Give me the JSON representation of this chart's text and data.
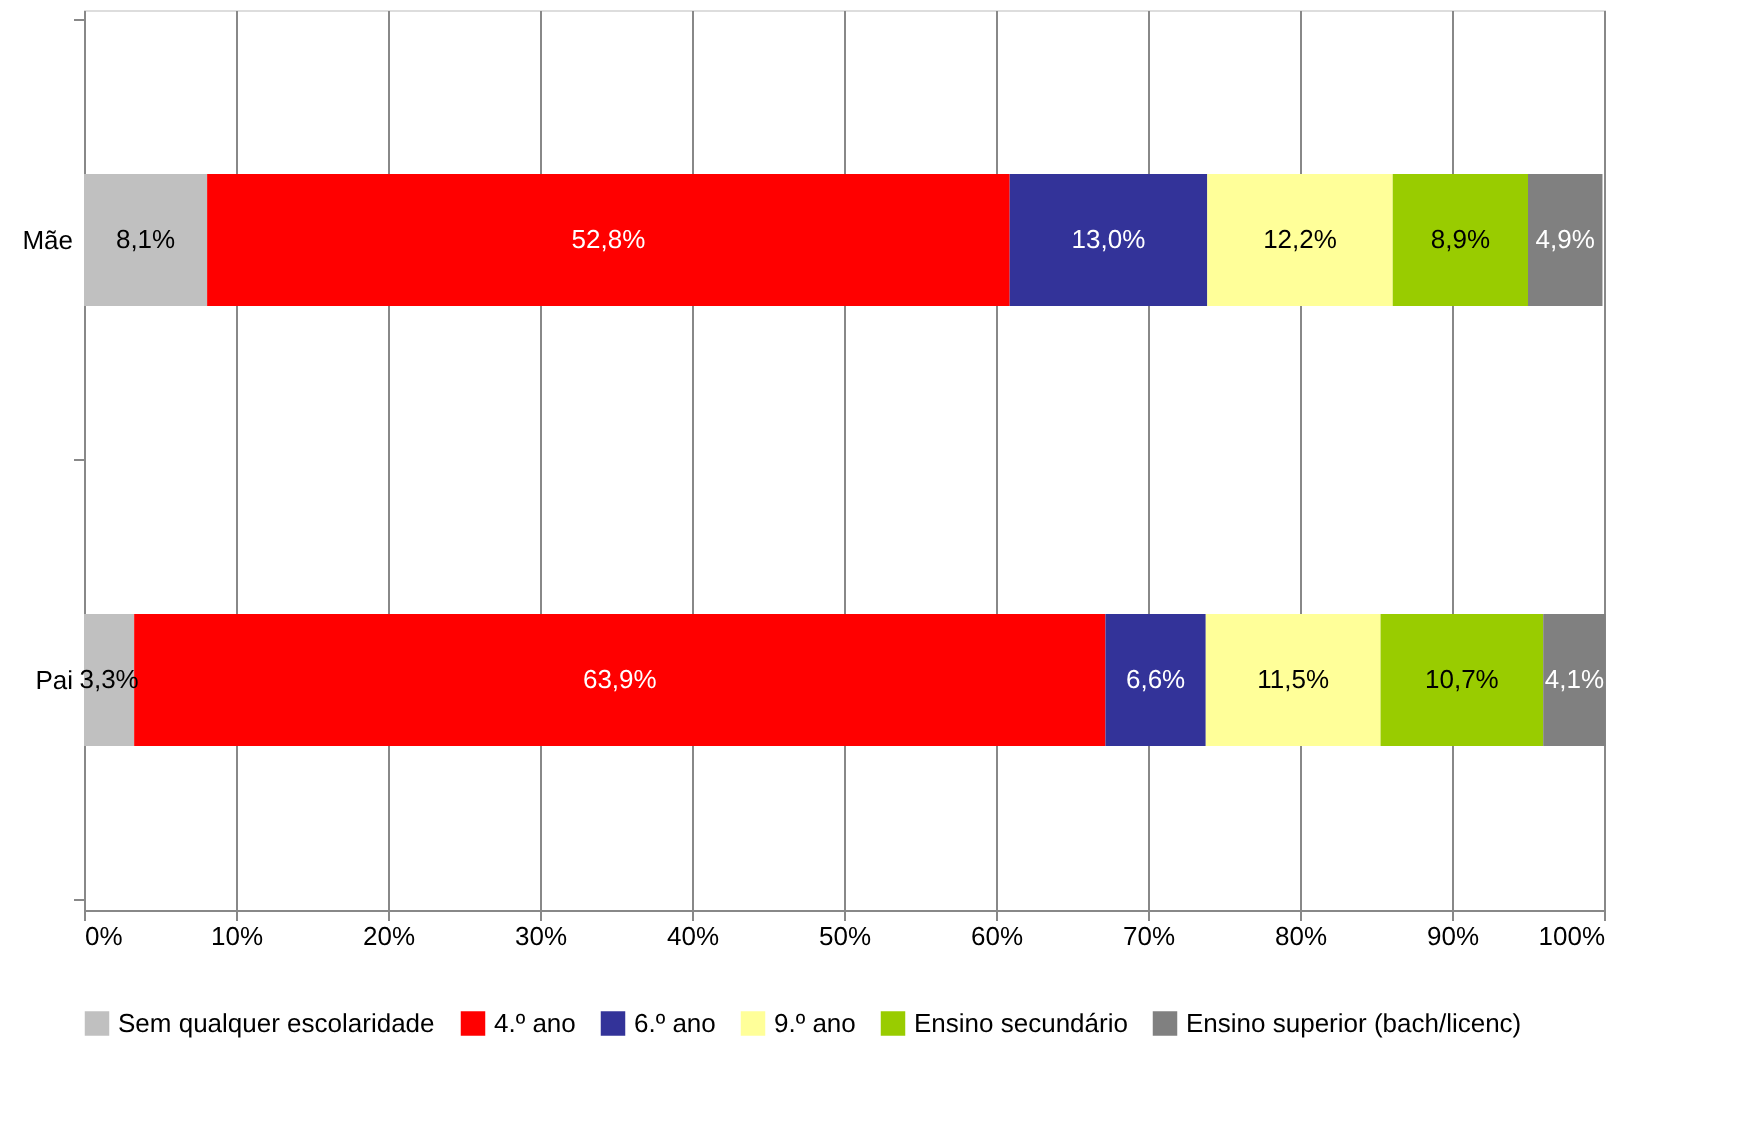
{
  "chart_data": {
    "type": "bar",
    "orientation": "horizontal",
    "stacked": true,
    "categories": [
      "Mãe",
      "Pai"
    ],
    "series": [
      {
        "name": "Sem qualquer escolaridade",
        "color": "#c0c0c0",
        "values": [
          8.1,
          3.3
        ],
        "value_labels": [
          "8,1%",
          "3,3%"
        ]
      },
      {
        "name": "4.º ano",
        "color": "#ff0000",
        "values": [
          52.8,
          63.9
        ],
        "value_labels": [
          "52,8%",
          "63,9%"
        ]
      },
      {
        "name": "6.º ano",
        "color": "#333399",
        "values": [
          13.0,
          6.6
        ],
        "value_labels": [
          "13,0%",
          "6,6%"
        ]
      },
      {
        "name": "9.º ano",
        "color": "#ffff99",
        "values": [
          12.2,
          11.5
        ],
        "value_labels": [
          "12,2%",
          "11,5%"
        ]
      },
      {
        "name": "Ensino secundário",
        "color": "#99cc00",
        "values": [
          8.9,
          10.7
        ],
        "value_labels": [
          "8,9%",
          "10,7%"
        ]
      },
      {
        "name": "Ensino superior (bach/licenc)",
        "color": "#808080",
        "values": [
          4.9,
          4.1
        ],
        "value_labels": [
          "4,9%",
          "4,1%"
        ]
      }
    ],
    "xlim": [
      0,
      100
    ],
    "xticks": [
      {
        "value": 0,
        "label": "0%"
      },
      {
        "value": 10,
        "label": "10%"
      },
      {
        "value": 20,
        "label": "20%"
      },
      {
        "value": 30,
        "label": "30%"
      },
      {
        "value": 40,
        "label": "40%"
      },
      {
        "value": 50,
        "label": "50%"
      },
      {
        "value": 60,
        "label": "60%"
      },
      {
        "value": 70,
        "label": "70%"
      },
      {
        "value": 80,
        "label": "80%"
      },
      {
        "value": 90,
        "label": "90%"
      },
      {
        "value": 100,
        "label": "100%"
      }
    ],
    "grid": "x",
    "legend": "bottom"
  }
}
